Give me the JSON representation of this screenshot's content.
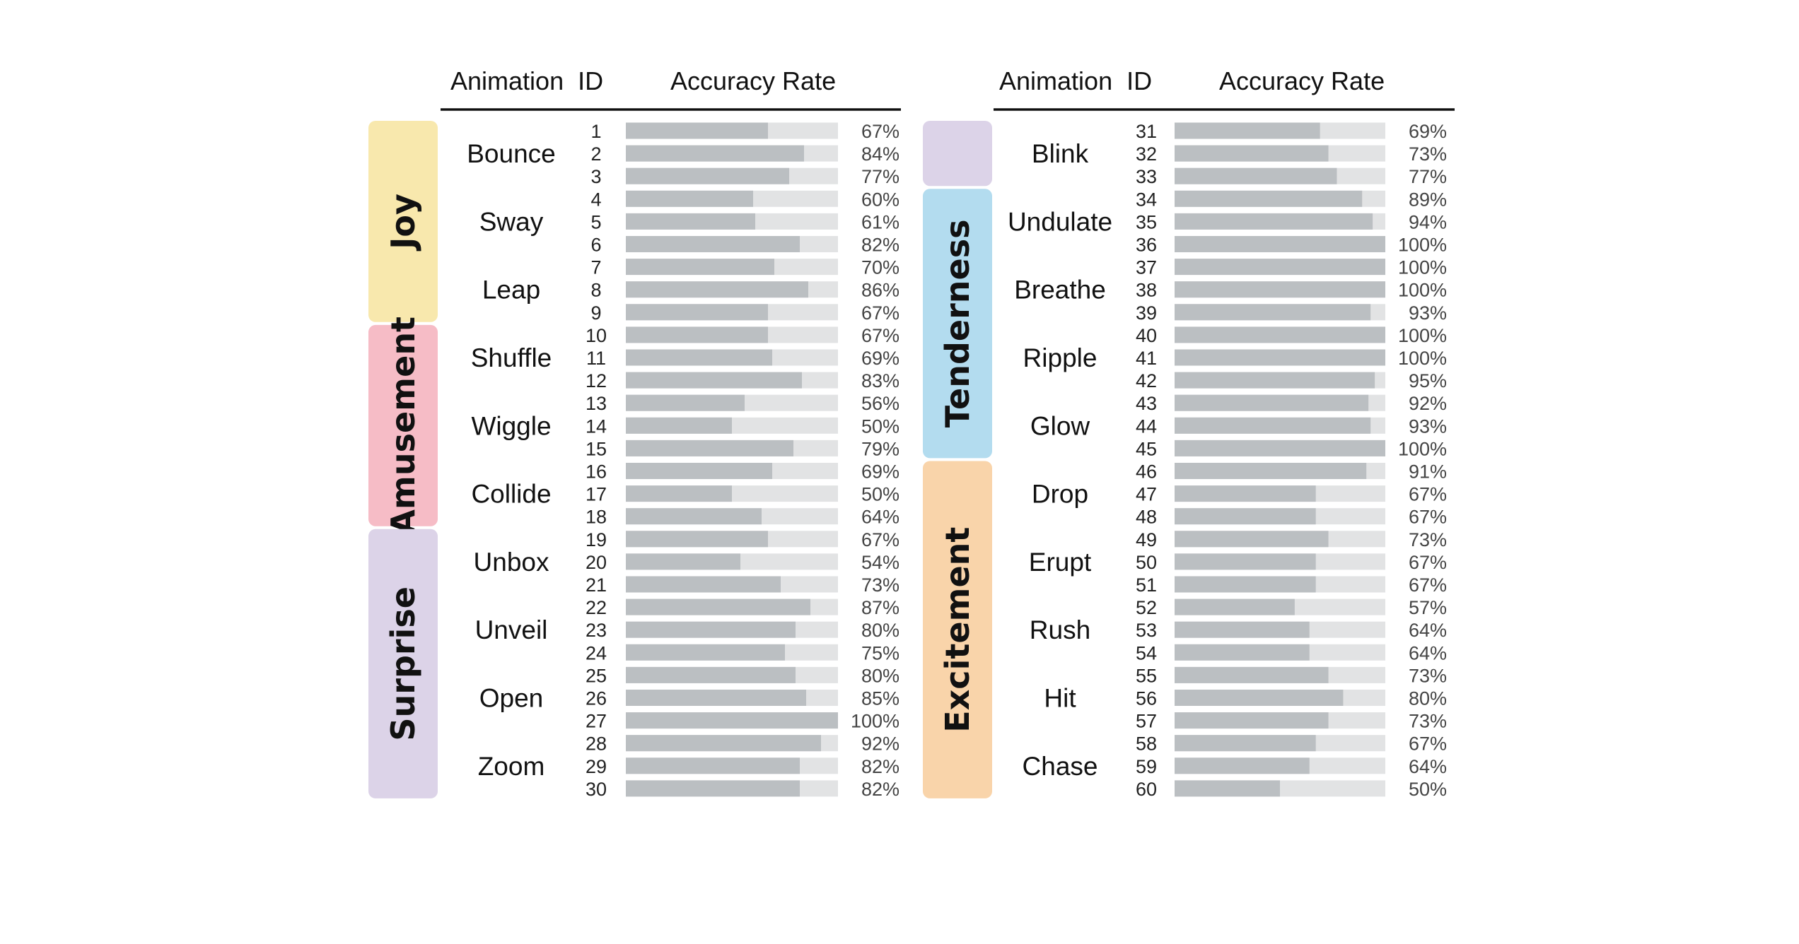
{
  "headers": {
    "animation_id": "Animation  ID",
    "accuracy_rate": "Accuracy Rate"
  },
  "colors": {
    "bar_track": "#e2e3e4",
    "bar_fill": "#bbbfc2",
    "rule": "#111111",
    "emotions": {
      "Joy": "#f8e8ad",
      "Amusement": "#f6bcc6",
      "Surprise": "#dcd3e8",
      "Tenderness": "#b3dcef",
      "Excitement": "#f9d4aa",
      "(unlabeled)": "#dcd3e8"
    }
  },
  "chart_data": {
    "type": "bar",
    "orientation": "horizontal",
    "value_unit": "%",
    "xlim": [
      0,
      100
    ],
    "grid": false,
    "legend": "none",
    "panels": [
      {
        "groups": [
          {
            "emotion": "Joy",
            "animations": [
              {
                "name": "Bounce",
                "ids": [
                  1,
                  2,
                  3
                ],
                "values": [
                  67,
                  84,
                  77
                ]
              },
              {
                "name": "Sway",
                "ids": [
                  4,
                  5,
                  6
                ],
                "values": [
                  60,
                  61,
                  82
                ]
              },
              {
                "name": "Leap",
                "ids": [
                  7,
                  8,
                  9
                ],
                "values": [
                  70,
                  86,
                  67
                ]
              }
            ]
          },
          {
            "emotion": "Amusement",
            "animations": [
              {
                "name": "Shuffle",
                "ids": [
                  10,
                  11,
                  12
                ],
                "values": [
                  67,
                  69,
                  83
                ]
              },
              {
                "name": "Wiggle",
                "ids": [
                  13,
                  14,
                  15
                ],
                "values": [
                  56,
                  50,
                  79
                ]
              },
              {
                "name": "Collide",
                "ids": [
                  16,
                  17,
                  18
                ],
                "values": [
                  69,
                  50,
                  64
                ]
              }
            ]
          },
          {
            "emotion": "Surprise",
            "animations": [
              {
                "name": "Unbox",
                "ids": [
                  19,
                  20,
                  21
                ],
                "values": [
                  67,
                  54,
                  73
                ]
              },
              {
                "name": "Unveil",
                "ids": [
                  22,
                  23,
                  24
                ],
                "values": [
                  87,
                  80,
                  75
                ]
              },
              {
                "name": "Open",
                "ids": [
                  25,
                  26,
                  27
                ],
                "values": [
                  80,
                  85,
                  100
                ]
              },
              {
                "name": "Zoom",
                "ids": [
                  28,
                  29,
                  30
                ],
                "values": [
                  92,
                  82,
                  82
                ]
              }
            ]
          }
        ]
      },
      {
        "groups": [
          {
            "emotion": "",
            "animations": [
              {
                "name": "Blink",
                "ids": [
                  31,
                  32,
                  33
                ],
                "values": [
                  69,
                  73,
                  77
                ]
              }
            ]
          },
          {
            "emotion": "Tenderness",
            "animations": [
              {
                "name": "Undulate",
                "ids": [
                  34,
                  35,
                  36
                ],
                "values": [
                  89,
                  94,
                  100
                ]
              },
              {
                "name": "Breathe",
                "ids": [
                  37,
                  38,
                  39
                ],
                "values": [
                  100,
                  100,
                  93
                ]
              },
              {
                "name": "Ripple",
                "ids": [
                  40,
                  41,
                  42
                ],
                "values": [
                  100,
                  100,
                  95
                ]
              },
              {
                "name": "Glow",
                "ids": [
                  43,
                  44,
                  45
                ],
                "values": [
                  92,
                  93,
                  100
                ]
              }
            ]
          },
          {
            "emotion": "Excitement",
            "animations": [
              {
                "name": "Drop",
                "ids": [
                  46,
                  47,
                  48
                ],
                "values": [
                  91,
                  67,
                  67
                ]
              },
              {
                "name": "Erupt",
                "ids": [
                  49,
                  50,
                  51
                ],
                "values": [
                  73,
                  67,
                  67
                ]
              },
              {
                "name": "Rush",
                "ids": [
                  52,
                  53,
                  54
                ],
                "values": [
                  57,
                  64,
                  64
                ]
              },
              {
                "name": "Hit",
                "ids": [
                  55,
                  56,
                  57
                ],
                "values": [
                  73,
                  80,
                  73
                ]
              },
              {
                "name": "Chase",
                "ids": [
                  58,
                  59,
                  60
                ],
                "values": [
                  67,
                  64,
                  50
                ]
              }
            ]
          }
        ]
      }
    ]
  }
}
